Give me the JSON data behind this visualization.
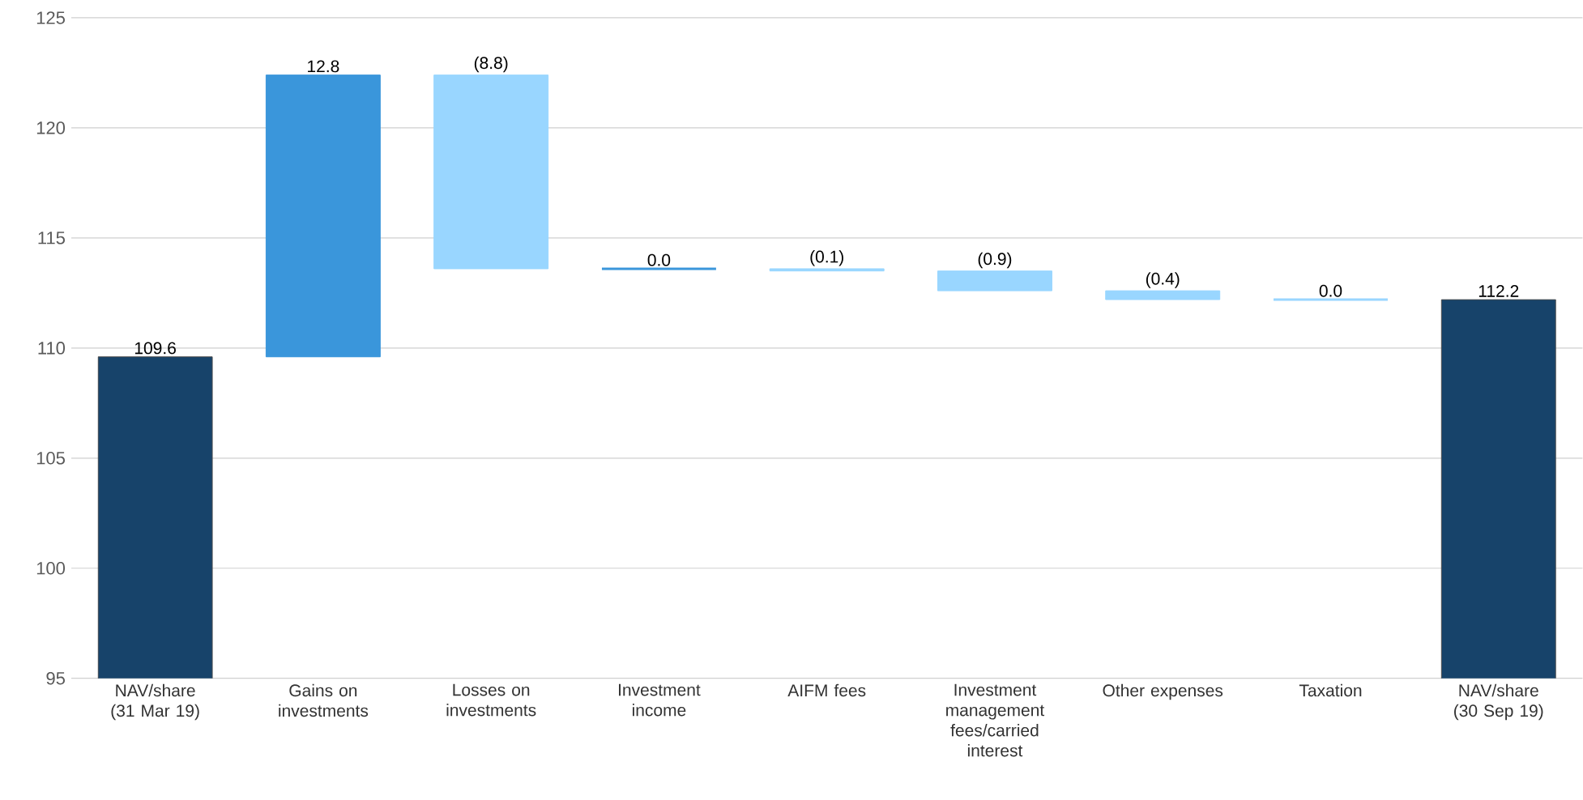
{
  "chart_data": {
    "type": "bar",
    "categories": [
      "NAV/share (31 Mar 19)",
      "Gains on investments",
      "Losses on investments",
      "Investment income",
      "AIFM fees",
      "Investment management fees/carried interest",
      "Other expenses",
      "Taxation",
      "NAV/share (30 Sep 19)"
    ],
    "values": [
      109.6,
      12.8,
      -8.8,
      0.0,
      -0.1,
      -0.9,
      -0.4,
      0.0,
      112.2
    ],
    "base": [
      null,
      109.6,
      122.4,
      113.6,
      113.6,
      113.5,
      112.6,
      112.2,
      null
    ],
    "colors": [
      "#17436a",
      "#3a96db",
      "#99d6ff",
      "#3a96db",
      "#99d6ff",
      "#99d6ff",
      "#99d6ff",
      "#99d6ff",
      "#17436a"
    ],
    "value_labels": [
      "109.6",
      "12.8",
      "(8.8)",
      "0.0",
      "(0.1)",
      "(0.9)",
      "(0.4)",
      "0.0",
      "112.2"
    ],
    "ylim": [
      95,
      125
    ],
    "yticks": [
      95,
      100,
      105,
      110,
      115,
      120,
      125
    ],
    "grid": "y"
  }
}
